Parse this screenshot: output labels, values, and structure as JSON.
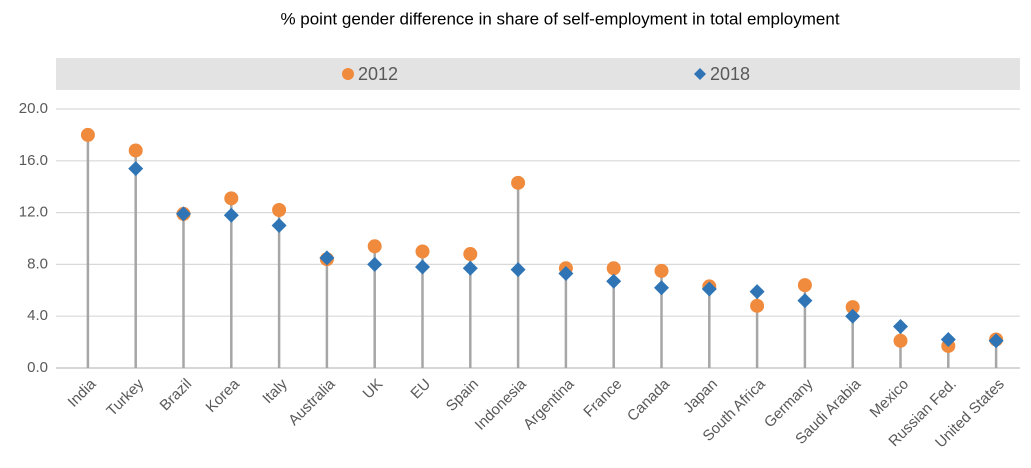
{
  "chart_data": {
    "type": "dot",
    "title": "% point gender difference in share of self-employment in total employment",
    "categories": [
      "India",
      "Turkey",
      "Brazil",
      "Korea",
      "Italy",
      "Australia",
      "UK",
      "EU",
      "Spain",
      "Indonesia",
      "Argentina",
      "France",
      "Canada",
      "Japan",
      "South Africa",
      "Germany",
      "Saudi Arabia",
      "Mexico",
      "Russian Fed.",
      "United States"
    ],
    "series": [
      {
        "name": "2012",
        "color": "#f08a3c",
        "marker": "circle",
        "values": [
          18.0,
          16.8,
          11.9,
          13.1,
          12.2,
          8.4,
          9.4,
          9.0,
          8.8,
          14.3,
          7.7,
          7.7,
          7.5,
          6.3,
          4.8,
          6.4,
          4.7,
          2.1,
          1.7,
          2.2
        ]
      },
      {
        "name": "2018",
        "color": "#2f75b5",
        "marker": "diamond",
        "values": [
          null,
          15.4,
          11.9,
          11.8,
          11.0,
          8.5,
          8.0,
          7.8,
          7.7,
          7.6,
          7.3,
          6.7,
          6.2,
          6.1,
          5.9,
          5.2,
          4.0,
          3.2,
          2.2,
          2.1
        ]
      }
    ],
    "ylim": [
      0,
      20
    ],
    "yticks": [
      {
        "value": 0,
        "label": "0.0"
      },
      {
        "value": 4,
        "label": "4.0"
      },
      {
        "value": 8,
        "label": "8.0"
      },
      {
        "value": 12,
        "label": "12.0"
      },
      {
        "value": 16,
        "label": "16.0"
      },
      {
        "value": 20,
        "label": "20.0"
      }
    ],
    "grid": true,
    "legend": "top"
  }
}
